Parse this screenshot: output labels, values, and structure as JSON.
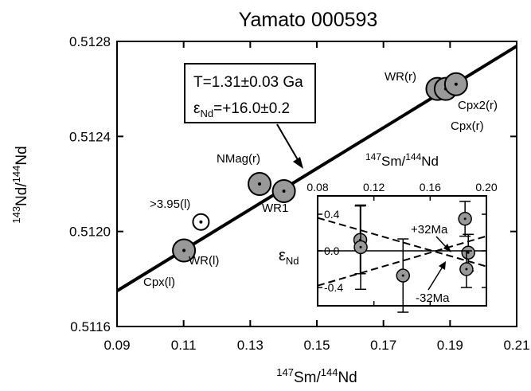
{
  "chart_data": [
    {
      "type": "scatter",
      "title": "Yamato 000593",
      "xlabel": {
        "pre": "147",
        "main": "Sm/",
        "mid": "144",
        "post": "Nd"
      },
      "ylabel": {
        "pre": "143",
        "main": "Nd/",
        "mid": "144",
        "post": "Nd"
      },
      "xlim": [
        0.09,
        0.21
      ],
      "ylim": [
        0.5116,
        0.5128
      ],
      "xticks": [
        0.09,
        0.11,
        0.13,
        0.15,
        0.17,
        0.19,
        0.21
      ],
      "xtick_labels": [
        "0.09",
        "0.11",
        "0.13",
        "0.15",
        "0.17",
        "0.19",
        "0.21"
      ],
      "yticks": [
        0.5116,
        0.512,
        0.5124,
        0.5128
      ],
      "ytick_labels": [
        "0.5116",
        "0.5120",
        "0.5124",
        "0.5128"
      ],
      "grid": false,
      "isochron": {
        "x": [
          0.09,
          0.21
        ],
        "y": [
          0.51175,
          0.51278
        ],
        "annotation": {
          "age": "T=1.31±0.03 Ga",
          "eps_symbol": "ε",
          "eps_sub": "Nd",
          "eps_value": "=+16.0±0.2"
        }
      },
      "points": [
        {
          "label": "Cpx(l)",
          "x": 0.1101,
          "y": 0.51192,
          "marker": "filled"
        },
        {
          "label": "WR(l)",
          "x": 0.1101,
          "y": 0.51192,
          "marker": "filled"
        },
        {
          "label": ">3.95(l)",
          "x": 0.1152,
          "y": 0.51204,
          "marker": "open"
        },
        {
          "label": "NMag(r)",
          "x": 0.1328,
          "y": 0.5122,
          "marker": "filled"
        },
        {
          "label": "WR1",
          "x": 0.1401,
          "y": 0.51217,
          "marker": "filled"
        },
        {
          "label": "WR(r)",
          "x": 0.1862,
          "y": 0.5126,
          "marker": "filled"
        },
        {
          "label": "Cpx(r)",
          "x": 0.1887,
          "y": 0.5126,
          "marker": "filled"
        },
        {
          "label": "Cpx2(r)",
          "x": 0.1918,
          "y": 0.51262,
          "marker": "filled"
        }
      ]
    },
    {
      "type": "scatter",
      "title": "",
      "xlabel": {
        "pre": "147",
        "main": "Sm/",
        "mid": "144",
        "post": "Nd"
      },
      "ylabel": {
        "symbol": "ε",
        "sub": "Nd"
      },
      "xlim": [
        0.08,
        0.2
      ],
      "ylim": [
        -0.6,
        0.6
      ],
      "xticks": [
        0.08,
        0.12,
        0.16,
        0.2
      ],
      "xtick_labels": [
        "0.08",
        "0.12",
        "0.16",
        "0.20"
      ],
      "yticks": [
        -0.4,
        0,
        0.4
      ],
      "ytick_labels": [
        "-0.4",
        "0.0",
        "0.4"
      ],
      "grid": false,
      "reference_lines": [
        {
          "label": "+32Ma",
          "x": [
            0.08,
            0.2
          ],
          "y": [
            -0.38,
            0.16
          ],
          "style": "dashed"
        },
        {
          "label": "-32Ma",
          "x": [
            0.08,
            0.2
          ],
          "y": [
            0.36,
            -0.17
          ],
          "style": "dashed"
        },
        {
          "label": "",
          "x": [
            0.08,
            0.2
          ],
          "y": [
            0,
            0
          ],
          "style": "solid"
        }
      ],
      "points": [
        {
          "x": 0.1103,
          "y": 0.12,
          "err": 0.37
        },
        {
          "x": 0.1106,
          "y": 0.04,
          "err": 0.46
        },
        {
          "x": 0.1407,
          "y": -0.27,
          "err": 0.4
        },
        {
          "x": 0.1848,
          "y": 0.35,
          "err": 0.19
        },
        {
          "x": 0.1871,
          "y": -0.02,
          "err": 0.2
        },
        {
          "x": 0.1858,
          "y": -0.2,
          "err": 0.2
        }
      ]
    }
  ]
}
